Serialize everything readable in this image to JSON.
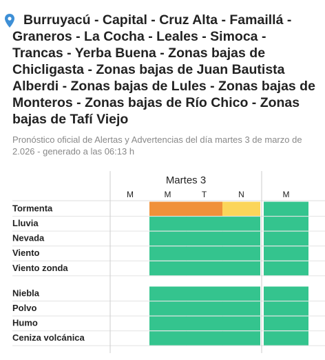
{
  "header": {
    "title": "Burruyacú - Capital - Cruz Alta - Famaillá - Graneros - La Cocha - Leales - Simoca - Trancas - Yerba Buena - Zonas bajas de Chicligasta - Zonas bajas de Juan Bautista Alberdi - Zonas bajas de Lules - Zonas bajas de Monteros - Zonas bajas de Río Chico - Zonas bajas de Tafí Viejo",
    "subtitle": "Pronóstico oficial de Alertas y Advertencias del día martes 3 de marzo de 2.026 - generado a las 06:13 h"
  },
  "table": {
    "day": "Martes 3",
    "columns": [
      "M",
      "M",
      "T",
      "N",
      "M"
    ],
    "groups": [
      [
        {
          "label": "Tormenta",
          "cells": [
            null,
            "#f0913a",
            "#f0913a",
            "#fbd55a",
            "#34c48e"
          ]
        },
        {
          "label": "Lluvia",
          "cells": [
            null,
            "#34c48e",
            "#34c48e",
            "#34c48e",
            "#34c48e"
          ]
        },
        {
          "label": "Nevada",
          "cells": [
            null,
            "#34c48e",
            "#34c48e",
            "#34c48e",
            "#34c48e"
          ]
        },
        {
          "label": "Viento",
          "cells": [
            null,
            "#34c48e",
            "#34c48e",
            "#34c48e",
            "#34c48e"
          ]
        },
        {
          "label": "Viento zonda",
          "cells": [
            null,
            "#34c48e",
            "#34c48e",
            "#34c48e",
            "#34c48e"
          ]
        }
      ],
      [
        {
          "label": "Niebla",
          "cells": [
            null,
            "#34c48e",
            "#34c48e",
            "#34c48e",
            "#34c48e"
          ]
        },
        {
          "label": "Polvo",
          "cells": [
            null,
            "#34c48e",
            "#34c48e",
            "#34c48e",
            "#34c48e"
          ]
        },
        {
          "label": "Humo",
          "cells": [
            null,
            "#34c48e",
            "#34c48e",
            "#34c48e",
            "#34c48e"
          ]
        },
        {
          "label": "Ceniza volcánica",
          "cells": [
            null,
            "#34c48e",
            "#34c48e",
            "#34c48e",
            "#34c48e"
          ]
        }
      ]
    ]
  }
}
